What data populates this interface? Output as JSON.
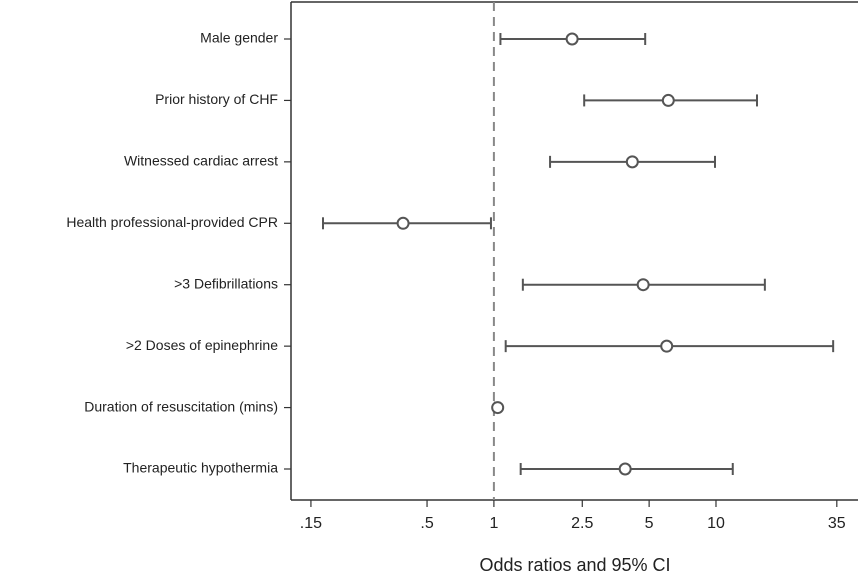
{
  "chart_data": {
    "type": "forest",
    "xlabel": "Odds ratios and 95% CI",
    "categories": [
      "Male gender",
      "Prior history of CHF",
      "Witnessed cardiac arrest",
      "Health professional-provided CPR",
      ">3 Defibrillations",
      ">2 Doses of epinephrine",
      "Duration of resuscitation (mins)",
      "Therapeutic hypothermia"
    ],
    "values": [
      2.25,
      6.1,
      4.2,
      0.39,
      4.7,
      6.0,
      1.04,
      3.9
    ],
    "lower": [
      1.07,
      2.55,
      1.79,
      0.17,
      1.35,
      1.13,
      1.01,
      1.32
    ],
    "upper": [
      4.8,
      15.3,
      9.9,
      0.97,
      16.6,
      33.7,
      1.06,
      11.9
    ],
    "color": "#555555",
    "reference_line": 1,
    "xscale": "log",
    "xlim": [
      0.122,
      43.6
    ],
    "xticks": [
      {
        "value": 0.15,
        "label": ".15"
      },
      {
        "value": 0.5,
        "label": ".5"
      },
      1,
      2.5,
      5,
      10,
      35
    ]
  }
}
